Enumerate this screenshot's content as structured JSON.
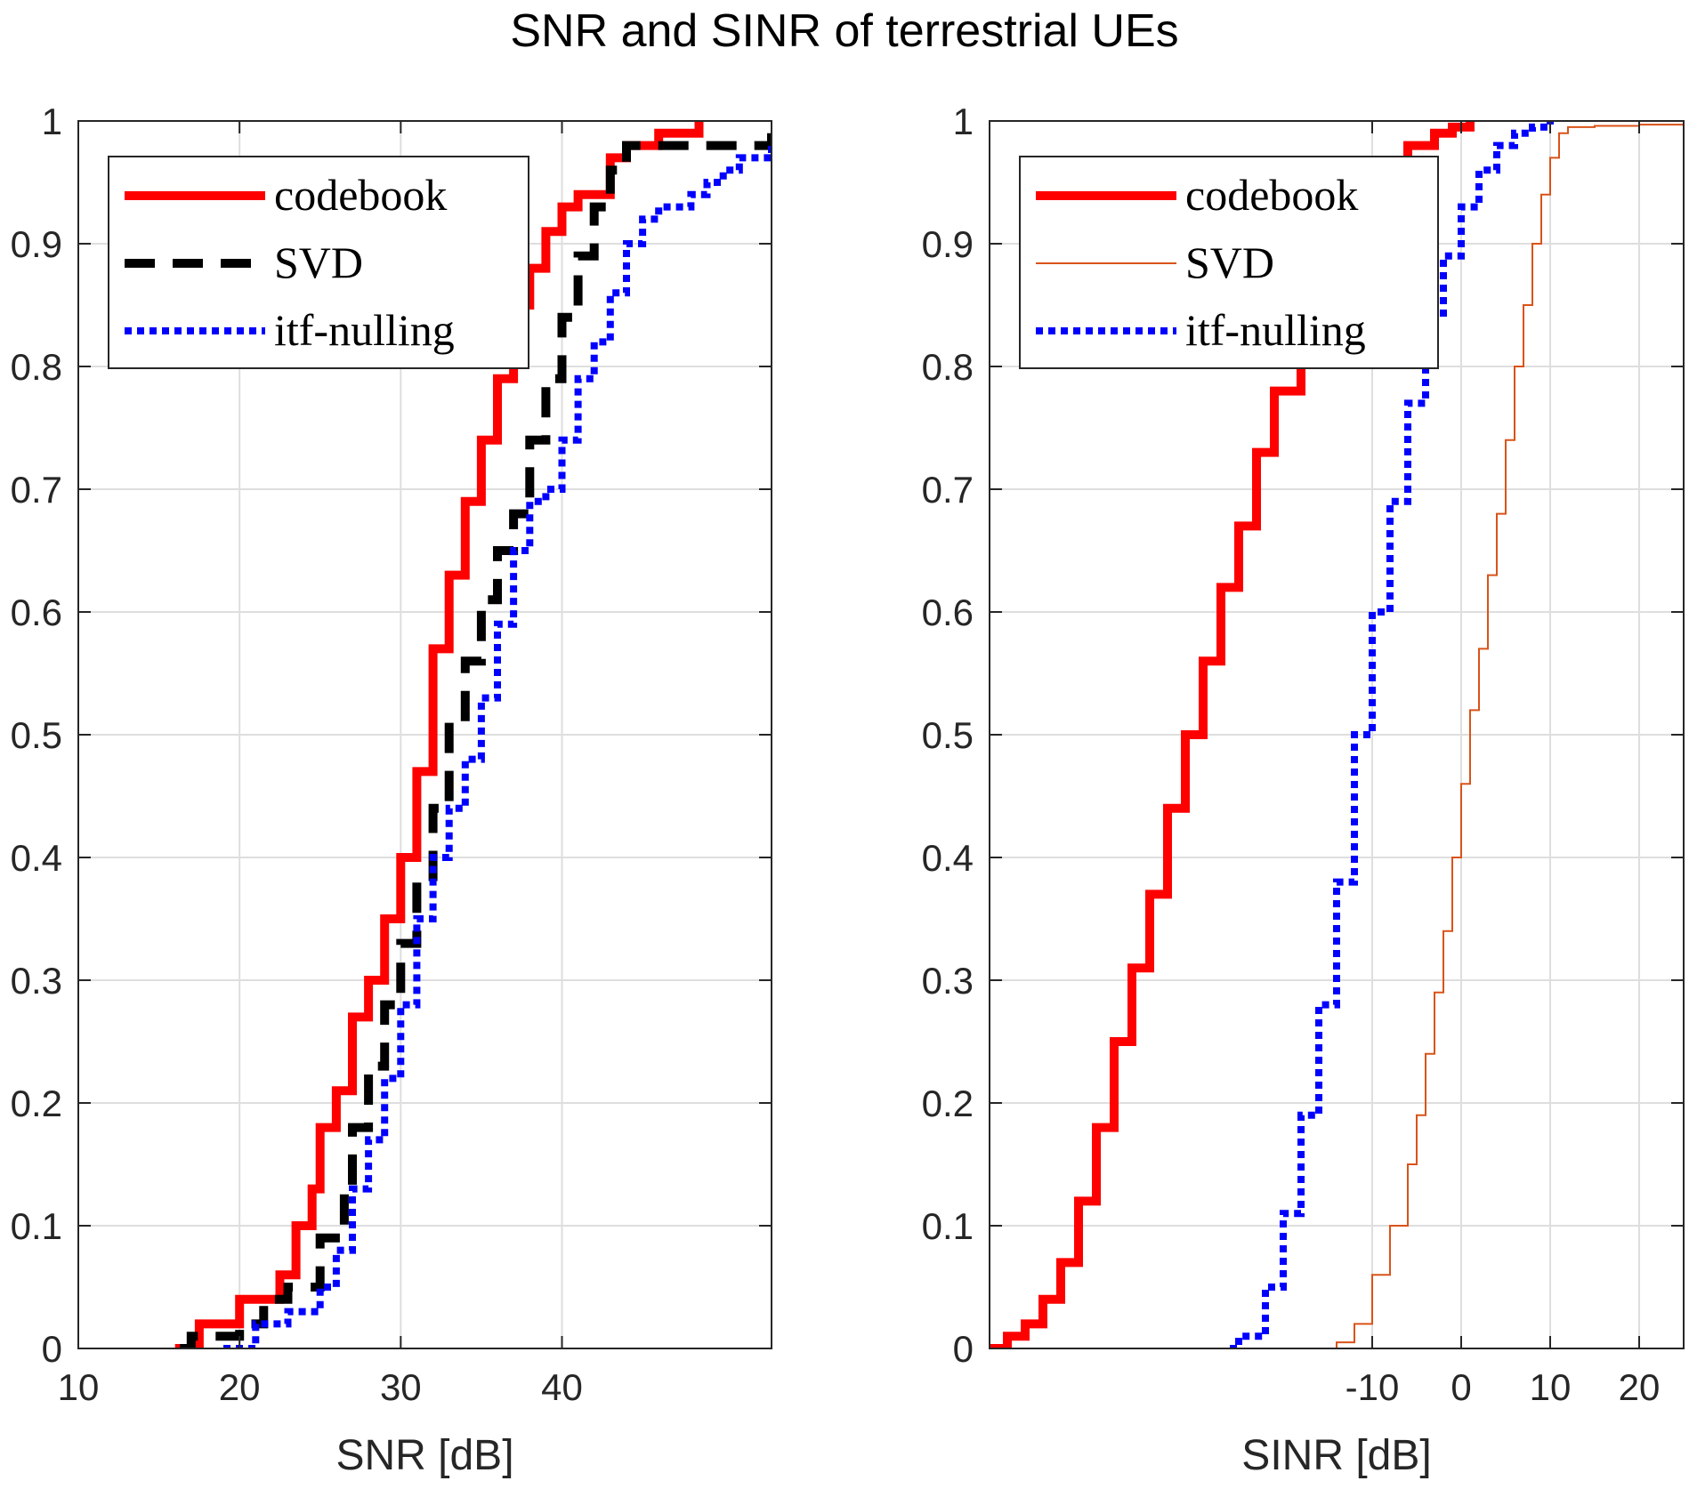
{
  "title": "SNR and SINR of terrestrial UEs",
  "chart_data": [
    {
      "type": "line",
      "subtype": "empirical-cdf",
      "xlabel": "SNR [dB]",
      "ylabel": "",
      "xlim": [
        10,
        53
      ],
      "ylim": [
        0,
        1
      ],
      "xticks": [
        10,
        20,
        30,
        40
      ],
      "xtick_labels": [
        "10",
        "20",
        "30",
        "40"
      ],
      "yticks": [
        0,
        0.1,
        0.2,
        0.3,
        0.4,
        0.5,
        0.6,
        0.7,
        0.8,
        0.9,
        1
      ],
      "ytick_labels": [
        "0",
        "0.1",
        "0.2",
        "0.3",
        "0.4",
        "0.5",
        "0.6",
        "0.7",
        "0.8",
        "0.9",
        "1"
      ],
      "grid": true,
      "legend": "top-left",
      "series": [
        {
          "name": "codebook",
          "color": "#ff0000",
          "style": "solid-thick",
          "x": [
            16.0,
            17.5,
            20.0,
            22.5,
            23.5,
            24.5,
            25.0,
            26.0,
            27.0,
            28.0,
            29.0,
            30.0,
            31.0,
            32.0,
            33.0,
            34.0,
            35.0,
            36.0,
            37.0,
            38.0,
            39.0,
            40.0,
            41.0,
            43.0,
            44.0,
            46.0,
            48.5
          ],
          "y": [
            0.0,
            0.02,
            0.04,
            0.06,
            0.1,
            0.13,
            0.18,
            0.21,
            0.27,
            0.3,
            0.35,
            0.4,
            0.47,
            0.57,
            0.63,
            0.69,
            0.74,
            0.79,
            0.85,
            0.88,
            0.91,
            0.93,
            0.94,
            0.97,
            0.98,
            0.99,
            1.0
          ]
        },
        {
          "name": "SVD",
          "color": "#000000",
          "style": "dashed-thick",
          "x": [
            16.3,
            17.0,
            20.0,
            21.5,
            23.0,
            25.0,
            26.5,
            27.0,
            28.0,
            29.0,
            30.0,
            31.0,
            32.0,
            33.0,
            34.0,
            35.0,
            36.0,
            37.0,
            38.0,
            39.0,
            40.0,
            41.0,
            42.0,
            43.0,
            44.0,
            45.0,
            53.0
          ],
          "y": [
            0.0,
            0.01,
            0.02,
            0.04,
            0.05,
            0.09,
            0.13,
            0.18,
            0.23,
            0.28,
            0.33,
            0.38,
            0.44,
            0.51,
            0.56,
            0.61,
            0.65,
            0.68,
            0.74,
            0.79,
            0.84,
            0.89,
            0.93,
            0.96,
            0.98,
            0.98,
            0.99
          ]
        },
        {
          "name": "itf-nulling",
          "color": "#0000ff",
          "style": "dotted-thick",
          "x": [
            19.0,
            21.0,
            23.0,
            25.0,
            26.0,
            27.0,
            28.0,
            29.0,
            30.0,
            31.0,
            32.0,
            33.0,
            34.0,
            35.0,
            36.0,
            37.0,
            38.0,
            39.0,
            40.0,
            41.0,
            42.0,
            43.0,
            44.0,
            45.0,
            46.0,
            47.0,
            48.0,
            49.0,
            50.0,
            51.0,
            53.0
          ],
          "y": [
            0.0,
            0.02,
            0.03,
            0.05,
            0.08,
            0.13,
            0.17,
            0.22,
            0.28,
            0.35,
            0.4,
            0.44,
            0.48,
            0.53,
            0.59,
            0.65,
            0.69,
            0.7,
            0.74,
            0.79,
            0.82,
            0.86,
            0.9,
            0.92,
            0.93,
            0.93,
            0.94,
            0.95,
            0.96,
            0.97,
            0.98
          ]
        }
      ]
    },
    {
      "type": "line",
      "subtype": "empirical-cdf",
      "xlabel": "SINR [dB]",
      "ylabel": "",
      "xlim": [
        -53,
        25
      ],
      "ylim": [
        0,
        1
      ],
      "xticks": [
        -10,
        0,
        10,
        20
      ],
      "xtick_labels": [
        "-10",
        "0",
        "10",
        "20"
      ],
      "yticks": [
        0,
        0.1,
        0.2,
        0.3,
        0.4,
        0.5,
        0.6,
        0.7,
        0.8,
        0.9,
        1
      ],
      "ytick_labels": [
        "0",
        "0.1",
        "0.2",
        "0.3",
        "0.4",
        "0.5",
        "0.6",
        "0.7",
        "0.8",
        "0.9",
        "1"
      ],
      "grid": true,
      "legend": "top-left",
      "series": [
        {
          "name": "codebook",
          "color": "#ff0000",
          "style": "solid-thick",
          "x": [
            -53.0,
            -51.0,
            -49.0,
            -47.0,
            -45.0,
            -43.0,
            -41.0,
            -39.0,
            -37.0,
            -35.0,
            -33.0,
            -31.0,
            -29.0,
            -27.0,
            -25.0,
            -23.0,
            -21.0,
            -18.0,
            -15.0,
            -12.0,
            -9.0,
            -6.0,
            -3.0,
            -1.0,
            1.0
          ],
          "y": [
            0.0,
            0.01,
            0.02,
            0.04,
            0.07,
            0.12,
            0.18,
            0.25,
            0.31,
            0.37,
            0.44,
            0.5,
            0.56,
            0.62,
            0.67,
            0.73,
            0.78,
            0.84,
            0.89,
            0.93,
            0.96,
            0.98,
            0.99,
            0.995,
            1.0
          ]
        },
        {
          "name": "SVD",
          "color": "#d95319",
          "style": "solid-thin",
          "x": [
            -17.0,
            -14.0,
            -12.0,
            -10.0,
            -8.0,
            -6.0,
            -5.0,
            -4.0,
            -3.0,
            -2.0,
            -1.0,
            0.0,
            1.0,
            2.0,
            3.0,
            4.0,
            5.0,
            6.0,
            7.0,
            8.0,
            9.0,
            10.0,
            11.0,
            12.0,
            15.0,
            20.0,
            25.0
          ],
          "y": [
            0.0,
            0.005,
            0.02,
            0.06,
            0.1,
            0.15,
            0.19,
            0.24,
            0.29,
            0.34,
            0.4,
            0.46,
            0.52,
            0.57,
            0.63,
            0.68,
            0.74,
            0.8,
            0.85,
            0.9,
            0.94,
            0.97,
            0.99,
            0.995,
            0.996,
            0.997,
            0.998
          ]
        },
        {
          "name": "itf-nulling",
          "color": "#0000ff",
          "style": "dotted-thick",
          "x": [
            -26.0,
            -25.0,
            -24.0,
            -22.0,
            -20.0,
            -18.0,
            -16.0,
            -14.0,
            -12.0,
            -10.0,
            -8.0,
            -6.0,
            -4.0,
            -2.0,
            0.0,
            2.0,
            4.0,
            6.0,
            8.0,
            10.0
          ],
          "y": [
            0.0,
            0.01,
            0.01,
            0.05,
            0.11,
            0.19,
            0.28,
            0.38,
            0.5,
            0.6,
            0.69,
            0.77,
            0.84,
            0.89,
            0.93,
            0.96,
            0.98,
            0.99,
            0.995,
            1.0
          ]
        }
      ]
    }
  ]
}
